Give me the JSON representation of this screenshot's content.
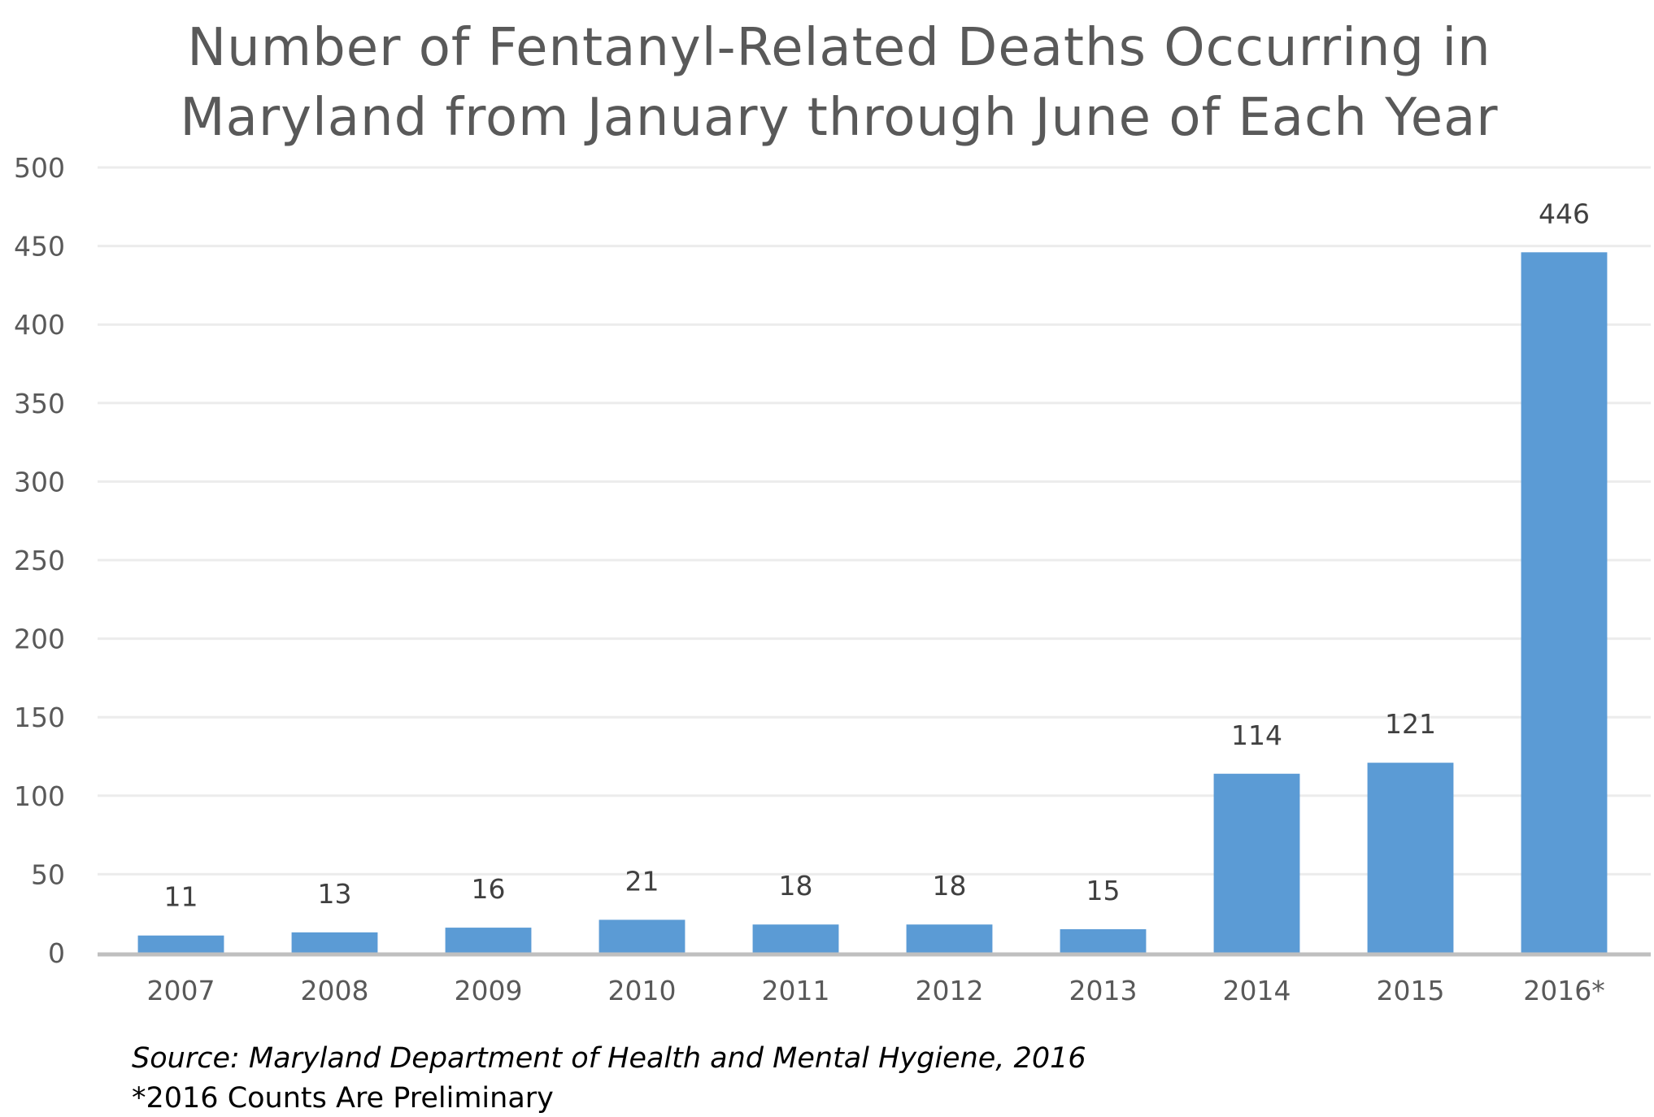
{
  "chart_data": {
    "type": "bar",
    "title_lines": [
      "Number of Fentanyl-Related Deaths Occurring in",
      "Maryland from January through June of Each Year"
    ],
    "categories": [
      "2007",
      "2008",
      "2009",
      "2010",
      "2011",
      "2012",
      "2013",
      "2014",
      "2015",
      "2016*"
    ],
    "values": [
      11,
      13,
      16,
      21,
      18,
      18,
      15,
      114,
      121,
      446
    ],
    "data_labels": [
      "11",
      "13",
      "16",
      "21",
      "18",
      "18",
      "15",
      "114",
      "121",
      "446"
    ],
    "y_ticks": [
      "0",
      "50",
      "100",
      "150",
      "200",
      "250",
      "300",
      "350",
      "400",
      "450",
      "500"
    ],
    "ylim": [
      0,
      500
    ],
    "grid": true,
    "bar_color": "#5b9bd5",
    "legend": "none",
    "source_note": "Source: Maryland Department of Health and Mental Hygiene, 2016",
    "footnote": "*2016 Counts Are Preliminary"
  }
}
